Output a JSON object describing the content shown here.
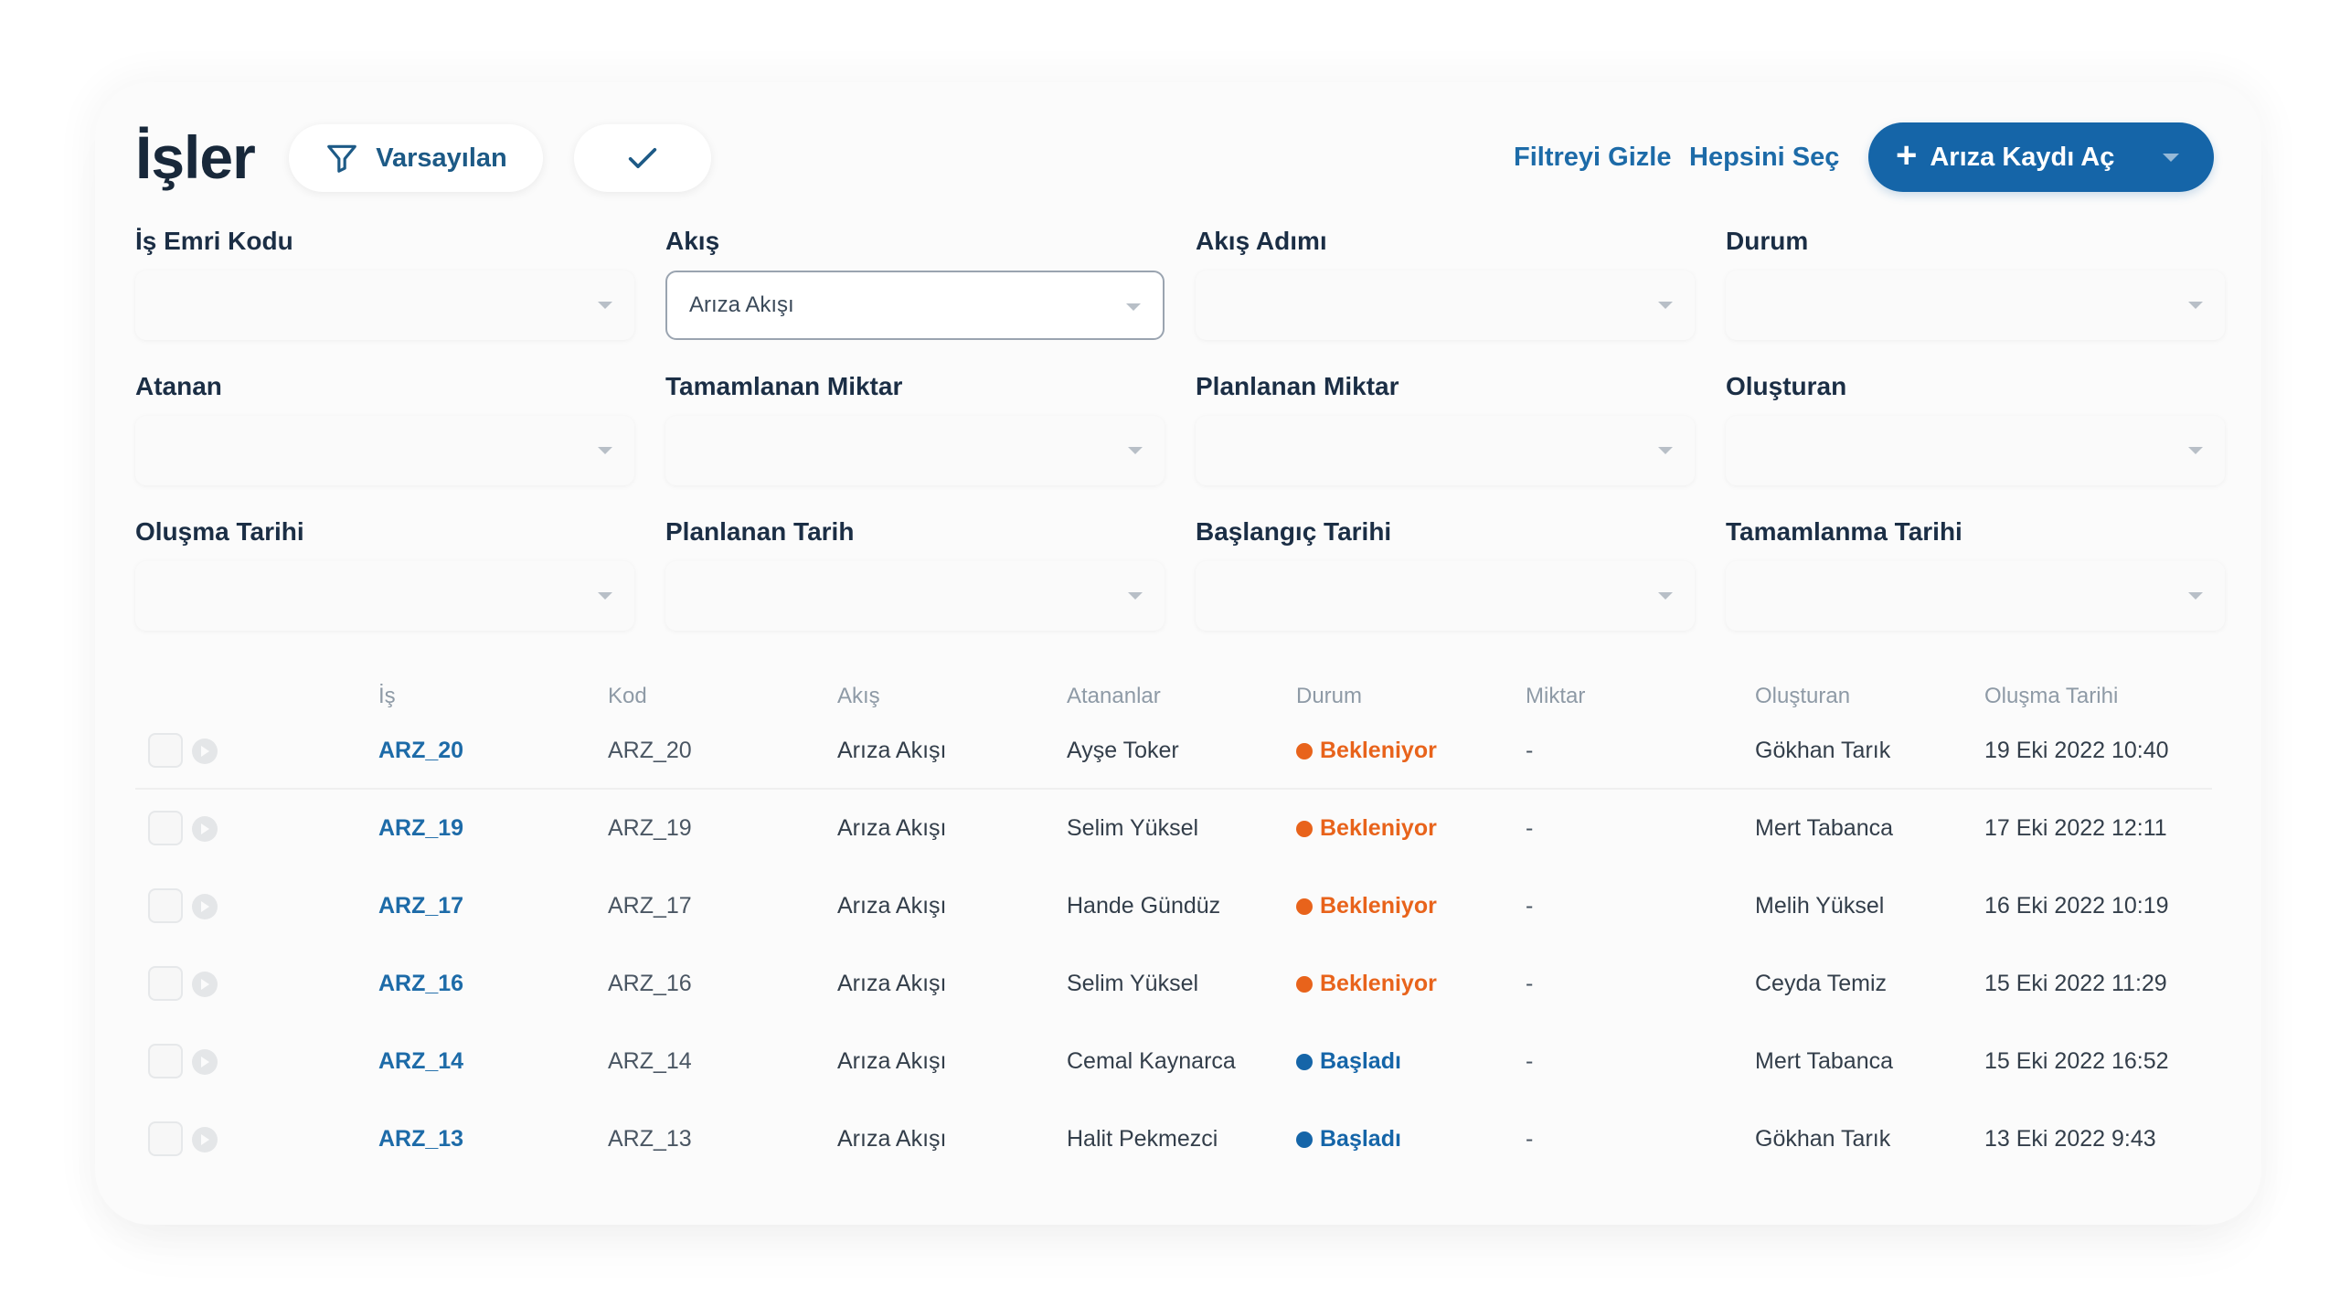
{
  "header": {
    "title": "İşler",
    "filter_preset": "Varsayılan",
    "hide_filter": "Filtreyi Gizle",
    "select_all": "Hepsini Seç",
    "primary_action": "Arıza Kaydı Aç"
  },
  "filters": [
    {
      "label": "İş Emri Kodu",
      "value": ""
    },
    {
      "label": "Akış",
      "value": "Arıza Akışı"
    },
    {
      "label": "Akış Adımı",
      "value": ""
    },
    {
      "label": "Durum",
      "value": ""
    },
    {
      "label": "Atanan",
      "value": ""
    },
    {
      "label": "Tamamlanan Miktar",
      "value": ""
    },
    {
      "label": "Planlanan Miktar",
      "value": ""
    },
    {
      "label": "Oluşturan",
      "value": ""
    },
    {
      "label": "Oluşma Tarihi",
      "value": ""
    },
    {
      "label": "Planlanan Tarih",
      "value": ""
    },
    {
      "label": "Başlangıç Tarihi",
      "value": ""
    },
    {
      "label": "Tamamlanma Tarihi",
      "value": ""
    }
  ],
  "table": {
    "columns": [
      "İş",
      "Kod",
      "Akış",
      "Atananlar",
      "Durum",
      "Miktar",
      "Oluşturan",
      "Oluşma Tarihi"
    ],
    "status_colors": {
      "Bekleniyor": "#e8631b",
      "Başladı": "#1565a8"
    },
    "rows": [
      {
        "job": "ARZ_20",
        "code": "ARZ_20",
        "flow": "Arıza Akışı",
        "assignee": "Ayşe Toker",
        "status": "Bekleniyor",
        "qty": "-",
        "creator": "Gökhan Tarık",
        "created": "19 Eki 2022 10:40"
      },
      {
        "job": "ARZ_19",
        "code": "ARZ_19",
        "flow": "Arıza Akışı",
        "assignee": "Selim Yüksel",
        "status": "Bekleniyor",
        "qty": "-",
        "creator": "Mert Tabanca",
        "created": "17 Eki 2022 12:11"
      },
      {
        "job": "ARZ_17",
        "code": "ARZ_17",
        "flow": "Arıza Akışı",
        "assignee": "Hande Gündüz",
        "status": "Bekleniyor",
        "qty": "-",
        "creator": "Melih Yüksel",
        "created": "16 Eki 2022 10:19"
      },
      {
        "job": "ARZ_16",
        "code": "ARZ_16",
        "flow": "Arıza Akışı",
        "assignee": "Selim Yüksel",
        "status": "Bekleniyor",
        "qty": "-",
        "creator": "Ceyda Temiz",
        "created": "15 Eki 2022 11:29"
      },
      {
        "job": "ARZ_14",
        "code": "ARZ_14",
        "flow": "Arıza Akışı",
        "assignee": "Cemal Kaynarca",
        "status": "Başladı",
        "qty": "-",
        "creator": "Mert Tabanca",
        "created": "15 Eki 2022 16:52"
      },
      {
        "job": "ARZ_13",
        "code": "ARZ_13",
        "flow": "Arıza Akışı",
        "assignee": "Halit Pekmezci",
        "status": "Başladı",
        "qty": "-",
        "creator": "Gökhan Tarık",
        "created": "13 Eki 2022 9:43"
      }
    ]
  }
}
